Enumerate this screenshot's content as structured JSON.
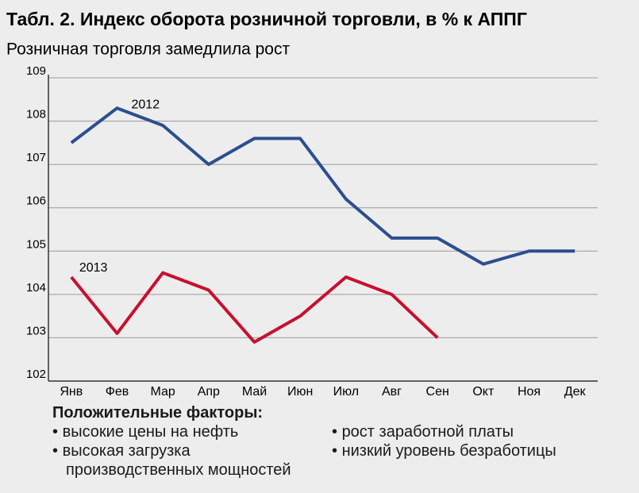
{
  "chart_data": {
    "type": "line",
    "title": "Табл. 2. Индекс оборота розничной торговли, в % к АППГ",
    "subtitle": "Розничная торговля замедлила рост",
    "categories": [
      "Янв",
      "Фев",
      "Мар",
      "Апр",
      "Май",
      "Июн",
      "Июл",
      "Авг",
      "Сен",
      "Окт",
      "Ноя",
      "Дек"
    ],
    "series": [
      {
        "name": "2012",
        "color": "#2b4f8f",
        "values": [
          107.5,
          108.3,
          107.9,
          107.0,
          107.6,
          107.6,
          106.2,
          105.3,
          105.3,
          104.7,
          105.0,
          105.0
        ]
      },
      {
        "name": "2013",
        "color": "#c8102e",
        "values": [
          104.4,
          103.1,
          104.5,
          104.1,
          102.9,
          103.5,
          104.4,
          104.0,
          103.0,
          null,
          null,
          null
        ]
      }
    ],
    "ylim": [
      102,
      109
    ],
    "yticks": [
      102,
      103,
      104,
      105,
      106,
      107,
      108,
      109
    ],
    "grid": true
  },
  "factors": {
    "title": "Положительные факторы:",
    "left": [
      "высокие цены на нефть",
      "высокая загрузка производственных мощностей"
    ],
    "right": [
      "рост заработной платы",
      "низкий уровень безработицы"
    ]
  }
}
